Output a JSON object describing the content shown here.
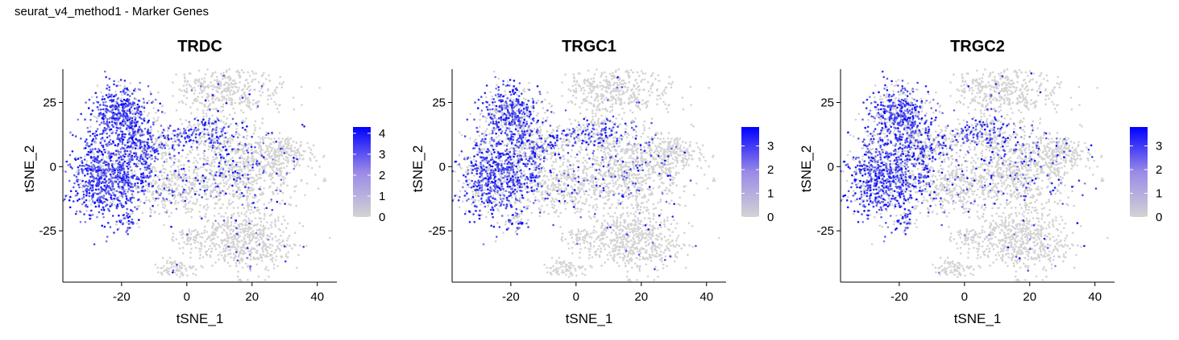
{
  "page_title": "seurat_v4_method1 - Marker Genes",
  "colors": {
    "low": "#d3d3d3",
    "high": "#0000ff"
  },
  "chart_data": [
    {
      "type": "scatter",
      "title": "TRDC",
      "xlabel": "tSNE_1",
      "ylabel": "tSNE_2",
      "xlim": [
        -38,
        46
      ],
      "ylim": [
        -45,
        38
      ],
      "xticks": [
        -20,
        0,
        20,
        40
      ],
      "yticks": [
        -25,
        0,
        25
      ],
      "legend_ticks": [
        0,
        1,
        2,
        3,
        4
      ],
      "legend_range": [
        0,
        4.3
      ],
      "grid": false,
      "legend_placement": "right"
    },
    {
      "type": "scatter",
      "title": "TRGC1",
      "xlabel": "tSNE_1",
      "ylabel": "tSNE_2",
      "xlim": [
        -38,
        46
      ],
      "ylim": [
        -45,
        38
      ],
      "xticks": [
        -20,
        0,
        20,
        40
      ],
      "yticks": [
        -25,
        0,
        25
      ],
      "legend_ticks": [
        0,
        1,
        2,
        3
      ],
      "legend_range": [
        0,
        3.8
      ],
      "grid": false,
      "legend_placement": "right"
    },
    {
      "type": "scatter",
      "title": "TRGC2",
      "xlabel": "tSNE_1",
      "ylabel": "tSNE_2",
      "xlim": [
        -38,
        46
      ],
      "ylim": [
        -45,
        38
      ],
      "xticks": [
        -20,
        0,
        20,
        40
      ],
      "yticks": [
        -25,
        0,
        25
      ],
      "legend_ticks": [
        0,
        1,
        2,
        3
      ],
      "legend_range": [
        0,
        3.8
      ],
      "grid": false,
      "legend_placement": "right"
    }
  ]
}
